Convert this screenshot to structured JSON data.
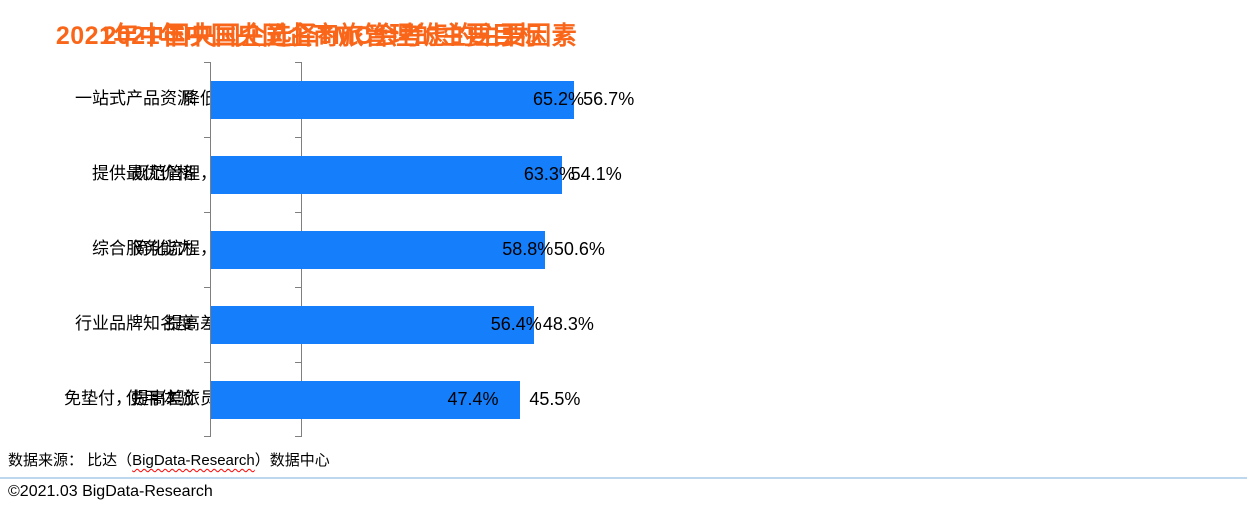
{
  "colors": {
    "title": "#fa6619",
    "bar": "#157efb",
    "axis": "#7f7f7f",
    "divider": "#bdd7ee",
    "text": "#000000",
    "spellcheck_underline": "#ff0000"
  },
  "chart_data": [
    {
      "type": "bar",
      "orientation": "horizontal",
      "title": "2021年中国央国企商旅管理的主要目标",
      "categories": [
        "降低差旅成本",
        "规范管理，合规透明",
        "简化流程，提高效率",
        "提高差旅安全性",
        "免垫付，提高差旅员工满意度"
      ],
      "values": [
        56.7,
        54.1,
        50.6,
        48.3,
        45.5
      ],
      "value_labels": [
        "56.7%",
        "54.1%",
        "50.6%",
        "48.3%",
        "45.5%"
      ],
      "xlabel": "",
      "ylabel": "",
      "xlim": [
        0,
        70
      ],
      "grid": false,
      "legend": null
    },
    {
      "type": "bar",
      "orientation": "horizontal",
      "title": "2021年中国央国企选择TMC会考虑的主要因素",
      "categories": [
        "一站式产品资源",
        "提供最优价格",
        "综合服务能力",
        "行业品牌知名度",
        "使用体验"
      ],
      "values": [
        65.2,
        63.3,
        58.8,
        56.4,
        47.4
      ],
      "value_labels": [
        "65.2%",
        "63.3%",
        "58.8%",
        "56.4%",
        "47.4%"
      ],
      "xlabel": "",
      "ylabel": "",
      "xlim": [
        0,
        70
      ],
      "grid": false,
      "legend": null
    }
  ],
  "footer": {
    "source_prefix": "数据来源： 比达（",
    "source_brand": "BigData-Research",
    "source_suffix": "）数据中心",
    "copyright": "©2021.03 BigData-Research"
  }
}
